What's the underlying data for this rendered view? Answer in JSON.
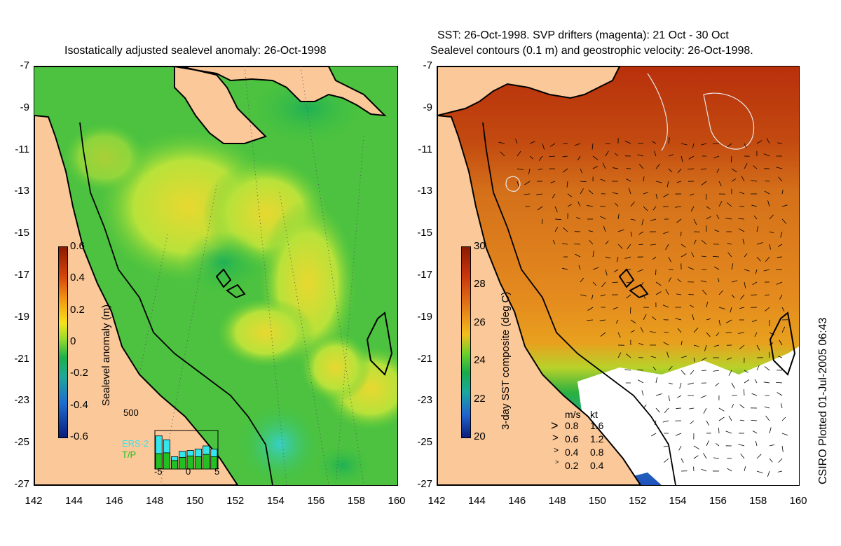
{
  "left_panel": {
    "title": "Isostatically adjusted sealevel anomaly: 26-Oct-1998",
    "colorbar": {
      "title": "Sealevel anomaly (m)",
      "ticks": [
        "0.6",
        "0.4",
        "0.2",
        "0",
        "-0.2",
        "-0.4",
        "-0.6"
      ]
    },
    "inset": {
      "ymax_label": "500",
      "xticks": [
        "-5",
        "0",
        "5"
      ],
      "legend": [
        "ERS-2",
        "T/P"
      ],
      "ers2_color": "#33e6ee",
      "tp_color": "#22c022",
      "ers2_values": [
        430,
        380,
        160,
        230,
        240,
        260,
        300,
        260
      ],
      "tp_values": [
        200,
        210,
        110,
        150,
        170,
        160,
        190,
        160
      ]
    }
  },
  "right_panel": {
    "title_line1": "SST: 26-Oct-1998. SVP drifters (magenta): 21 Oct - 30 Oct",
    "title_line2": "Sealevel contours (0.1 m) and geostrophic velocity: 26-Oct-1998.",
    "colorbar": {
      "title": "3-day SST composite (deg C)",
      "ticks": [
        "30",
        "28",
        "26",
        "24",
        "22",
        "20"
      ]
    },
    "vector_legend": {
      "header_ms": "m/s",
      "header_kt": "kt",
      "rows": [
        {
          "ms": "0.8",
          "kt": "1.6"
        },
        {
          "ms": "0.6",
          "kt": "1.2"
        },
        {
          "ms": "0.4",
          "kt": "0.8"
        },
        {
          "ms": "0.2",
          "kt": "0.4"
        }
      ]
    }
  },
  "axes": {
    "lat_ticks": [
      "-7",
      "-9",
      "-11",
      "-13",
      "-15",
      "-17",
      "-19",
      "-21",
      "-23",
      "-25",
      "-27"
    ],
    "lon_ticks": [
      "142",
      "144",
      "146",
      "148",
      "150",
      "152",
      "154",
      "156",
      "158",
      "160"
    ]
  },
  "side_label": "CSIRO Plotted 01-Jul-2005 06:43",
  "colors": {
    "land": "#fbc899",
    "sla_green": "#3fc23f",
    "sla_yellow": "#d8ee33",
    "sst_warm": "#c0360f",
    "sst_orange": "#e07a1a"
  }
}
